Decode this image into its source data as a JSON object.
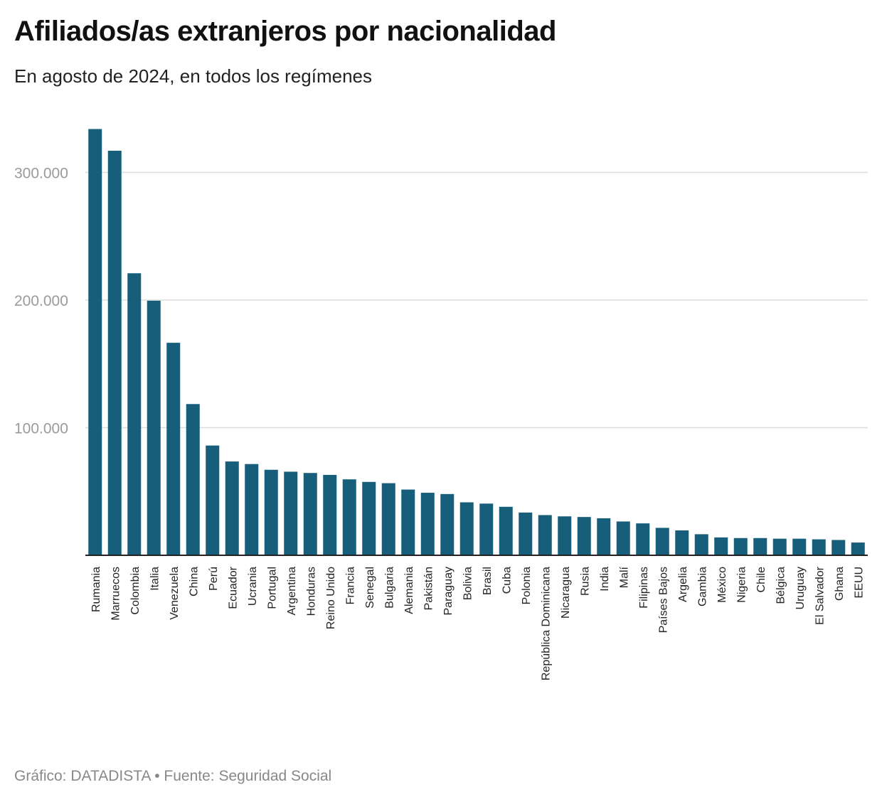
{
  "header": {
    "title": "Afiliados/as extranjeros por nacionalidad",
    "subtitle": "En agosto de 2024, en todos los regímenes"
  },
  "footer": {
    "source": "Gráfico: DATADISTA • Fuente: Seguridad Social"
  },
  "colors": {
    "bar": "#175e7a",
    "grid": "#dddddd",
    "axis": "#222222"
  },
  "chart_data": {
    "type": "bar",
    "title": "Afiliados/as extranjeros por nacionalidad",
    "subtitle": "En agosto de 2024, en todos los regímenes",
    "xlabel": "",
    "ylabel": "",
    "ylim": [
      0,
      335000
    ],
    "yticks": [
      100000,
      200000,
      300000
    ],
    "ytick_labels": [
      "100.000",
      "200.000",
      "300.000"
    ],
    "grid": true,
    "legend": "none",
    "categories": [
      "Rumania",
      "Marruecos",
      "Colombia",
      "Italia",
      "Venezuela",
      "China",
      "Perú",
      "Ecuador",
      "Ucrania",
      "Portugal",
      "Argentina",
      "Honduras",
      "Reino Unido",
      "Francia",
      "Senegal",
      "Bulgaria",
      "Alemania",
      "Pakistán",
      "Paraguay",
      "Bolivia",
      "Brasil",
      "Cuba",
      "Polonia",
      "República Dominicana",
      "Nicaragua",
      "Rusia",
      "India",
      "Malí",
      "Filipinas",
      "Países Bajos",
      "Argelia",
      "Gambia",
      "México",
      "Nigeria",
      "Chile",
      "Bélgica",
      "Uruguay",
      "El Salvador",
      "Ghana",
      "EEUU"
    ],
    "values": [
      334000,
      317000,
      221000,
      199500,
      166500,
      118500,
      86000,
      73500,
      71500,
      67000,
      65500,
      64500,
      63000,
      59500,
      57500,
      56500,
      51500,
      49000,
      48000,
      41500,
      40500,
      38000,
      33500,
      31500,
      30500,
      30000,
      29000,
      26500,
      25000,
      21500,
      19500,
      16500,
      14000,
      13500,
      13500,
      13000,
      13000,
      12500,
      12000,
      10000
    ]
  }
}
